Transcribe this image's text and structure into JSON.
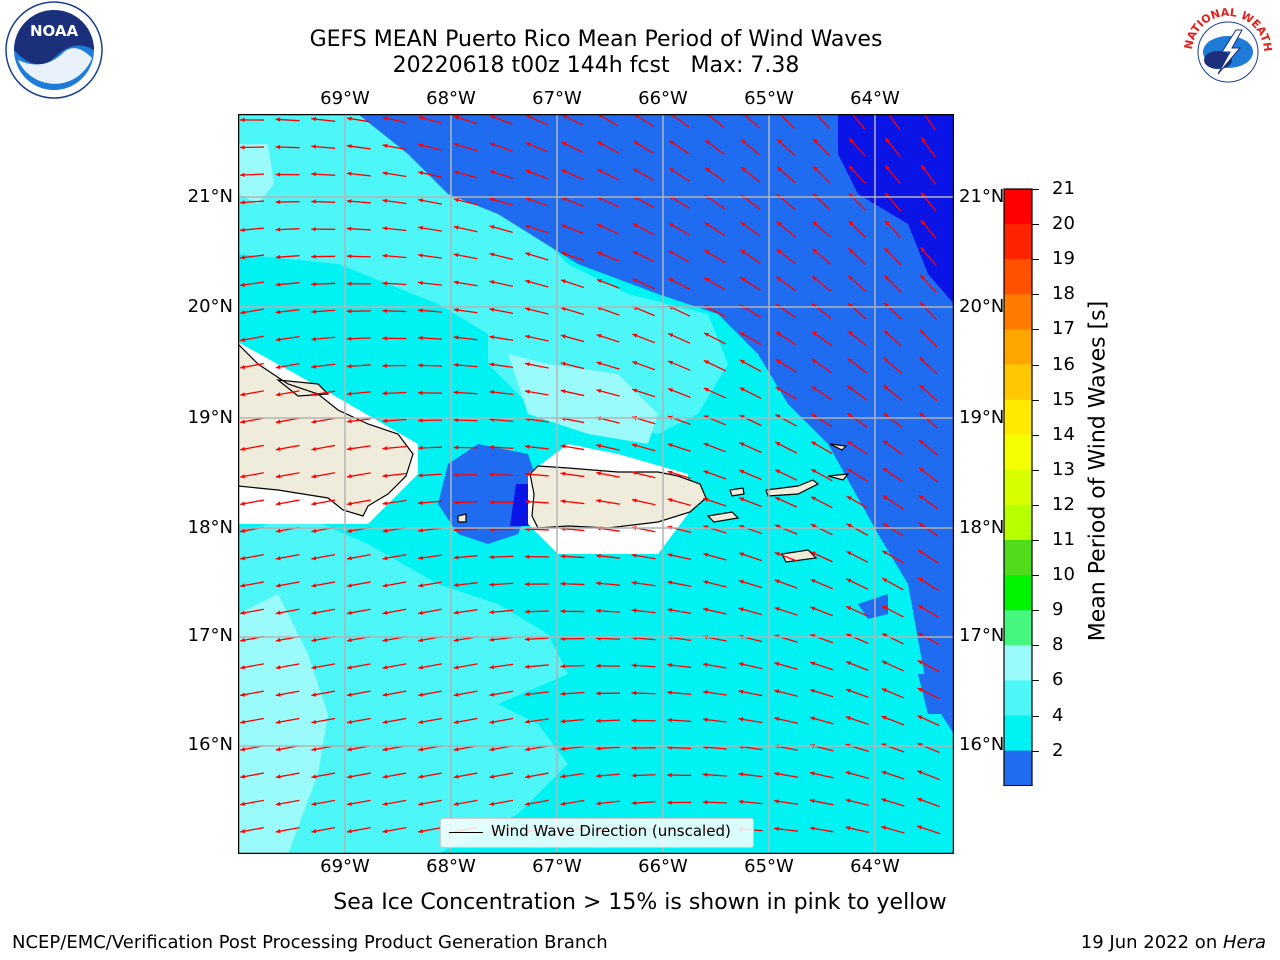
{
  "header": {
    "title_line1": "GEFS MEAN Puerto Rico Mean Period of Wind Waves",
    "title_line2": "20220618 t00z 144h fcst   Max: 7.38"
  },
  "logos": {
    "noaa_text": "NOAA",
    "nws_text": "NATIONAL WEATHER SERVICE"
  },
  "map": {
    "lon_labels": [
      "69°W",
      "68°W",
      "67°W",
      "66°W",
      "65°W",
      "64°W"
    ],
    "lat_labels": [
      "21°N",
      "20°N",
      "19°N",
      "18°N",
      "17°N",
      "16°N"
    ],
    "legend_label": "Wind Wave Direction (unscaled)",
    "colors": {
      "land": "#efecdc",
      "band_2_4": "#1f6cf0",
      "band_4_6": "#00f2f2",
      "band_6_8": "#4ef7f7",
      "band_8_9": "#9bfbfb",
      "deep": "#0a14e6",
      "arrow": "#ff0000",
      "grid": "#b4b4b4"
    }
  },
  "colorbar": {
    "label": "Mean Period of Wind Waves [s]",
    "ticks": [
      "21",
      "20",
      "19",
      "18",
      "17",
      "16",
      "15",
      "14",
      "13",
      "12",
      "11",
      "10",
      "9",
      "8",
      "6",
      "4",
      "2"
    ],
    "colors": [
      "#ff0000",
      "#ff2400",
      "#ff5200",
      "#ff7b00",
      "#ffa500",
      "#ffc800",
      "#ffea00",
      "#f4ff00",
      "#d8ff00",
      "#b8ff00",
      "#50dc1a",
      "#00f400",
      "#45f77e",
      "#9bfbfb",
      "#4ef7f7",
      "#00f2f2",
      "#1f6cf0",
      "#0a14e6"
    ]
  },
  "notes": {
    "sea_ice": "Sea Ice Concentration > 15% is shown in pink to yellow"
  },
  "footer": {
    "left": "NCEP/EMC/Verification Post Processing Product Generation Branch",
    "right_date": "19 Jun 2022 on ",
    "right_host": "Hera"
  }
}
